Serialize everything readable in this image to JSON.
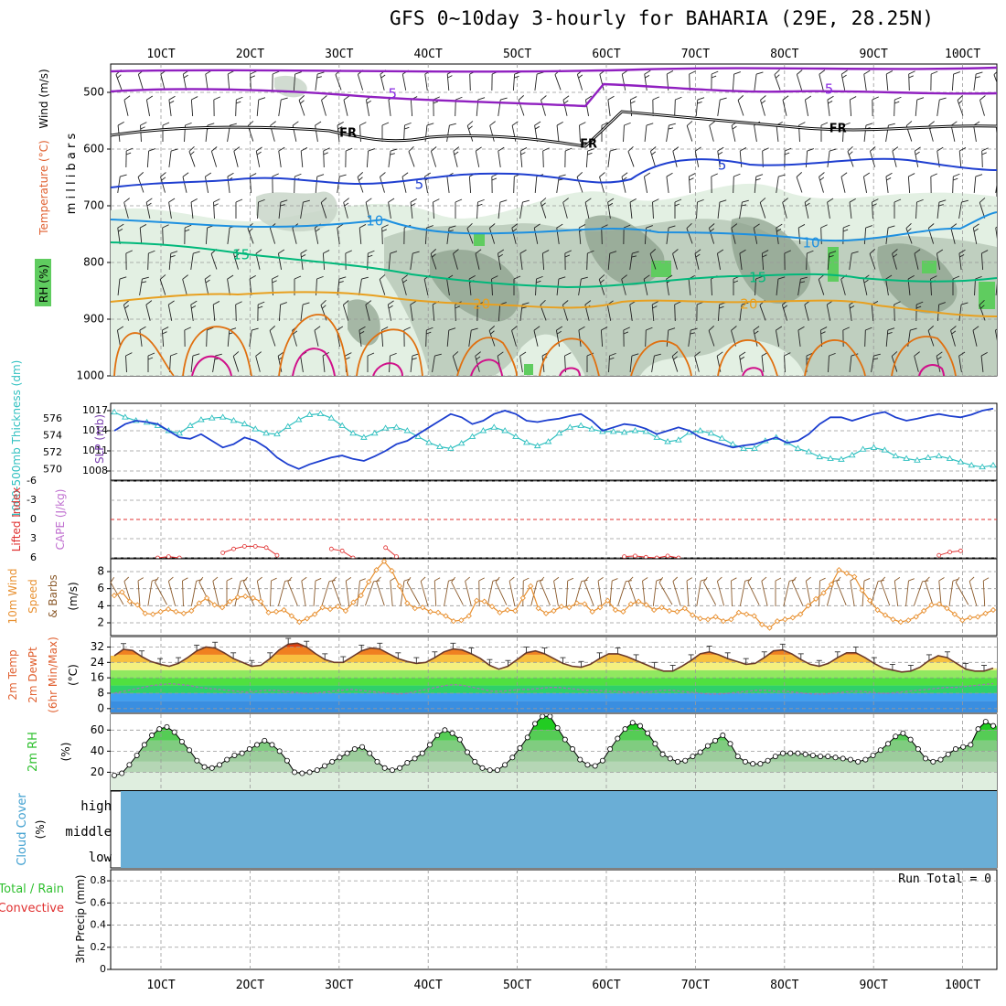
{
  "title": "GFS 0~10day 3-hourly for BAHARIA (29E, 28.25N)",
  "date_ticks": [
    "1OCT",
    "2OCT",
    "3OCT",
    "4OCT",
    "5OCT",
    "6OCT",
    "7OCT",
    "8OCT",
    "9OCT",
    "10OCT"
  ],
  "colors": {
    "rh_green": "#5fcc5f",
    "temp_500": "#8a2be2",
    "temp_fr": "#000000",
    "temp_5": "#1f3fd0",
    "temp_10": "#1e90e0",
    "temp_15": "#00b87a",
    "temp_20": "#e8a020",
    "temp_25": "#e07010",
    "temp_30": "#d0108a",
    "slp": "#1d3fcf",
    "thickness": "#30c0c0",
    "lifted_index": "#e03030",
    "wind_speed": "#e89030",
    "barbs": "#8b5a2b",
    "dewpoint": "#9b7ab0",
    "rh_line": "#000000",
    "cloud": "#6aaed6",
    "precip_total": "#30c030"
  },
  "chart_data": [
    {
      "id": "upper_air",
      "type": "contour",
      "ylabel_parts": [
        "RH (%)",
        "Temperature (°C)",
        "Wind (m/s)"
      ],
      "yunit": "m i l l i b a r s",
      "y_ticks": [
        "500",
        "600",
        "700",
        "800",
        "900",
        "1000"
      ],
      "ylim": [
        450,
        1000
      ],
      "contour_labels": [
        {
          "text": "5",
          "level": "500",
          "day": 2.6
        },
        {
          "text": "5",
          "level": "500",
          "day": 7.5
        },
        {
          "text": "FR",
          "level": "fr",
          "day": 2.1
        },
        {
          "text": "FR",
          "level": "fr",
          "day": 4.8
        },
        {
          "text": "FR",
          "level": "fr",
          "day": 7.6
        },
        {
          "text": "5",
          "level": "5",
          "day": 2.9
        },
        {
          "text": "5",
          "level": "5",
          "day": 6.3
        },
        {
          "text": "10",
          "level": "10",
          "day": 2.4
        },
        {
          "text": "10",
          "level": "10",
          "day": 7.3
        },
        {
          "text": "15",
          "level": "15",
          "day": 0.9
        },
        {
          "text": "15",
          "level": "15",
          "day": 6.7
        },
        {
          "text": "20",
          "level": "20",
          "day": 3.6
        },
        {
          "text": "20",
          "level": "20",
          "day": 6.6
        }
      ]
    },
    {
      "id": "slp_thickness",
      "type": "line",
      "ylabel_left": "1000-500mb Thickness (dm)",
      "ylabel_right": "SLP (mb)",
      "left_ticks": [
        "576",
        "574",
        "572",
        "570"
      ],
      "right_ticks": [
        "1017",
        "1014",
        "1011",
        "1008"
      ],
      "slp_range": [
        1008,
        1017
      ],
      "slp": [
        1014,
        1015,
        1015.5,
        1015.3,
        1015,
        1014,
        1013,
        1012.8,
        1013.5,
        1012.5,
        1011.5,
        1012,
        1013,
        1012.5,
        1011.5,
        1010,
        1009,
        1008.3,
        1009,
        1009.5,
        1010,
        1010.3,
        1009.8,
        1009.5,
        1010.2,
        1011,
        1012,
        1012.5,
        1013.5,
        1014.5,
        1015.5,
        1016.5,
        1016,
        1015,
        1015.5,
        1016.5,
        1017,
        1016.5,
        1015.5,
        1015.3,
        1015.6,
        1015.8,
        1016.2,
        1016.5,
        1015.5,
        1014,
        1014.5,
        1015,
        1014.8,
        1014.3,
        1013.5,
        1014,
        1014.5,
        1014,
        1013,
        1012.5,
        1012,
        1011.5,
        1011.8,
        1012,
        1012.5,
        1013,
        1012.2,
        1012.5,
        1013.5,
        1015,
        1016,
        1016,
        1015.5,
        1016,
        1016.5,
        1016.8,
        1016,
        1015.5,
        1015.8,
        1016.2,
        1016.5,
        1016.2,
        1016,
        1016.4,
        1017,
        1017.3
      ],
      "thickness": [
        576.8,
        576.2,
        575.8,
        575.6,
        575.2,
        574.6,
        574.3,
        575.2,
        575.9,
        576.1,
        576.2,
        575.8,
        575.4,
        574.8,
        574.3,
        574.2,
        575.1,
        575.9,
        576.5,
        576.6,
        576.1,
        575.2,
        574.3,
        573.8,
        574.3,
        574.9,
        575,
        574.6,
        573.9,
        573.2,
        572.7,
        572.5,
        573.1,
        573.9,
        574.6,
        575,
        574.6,
        573.9,
        573.2,
        572.8,
        573.3,
        574.3,
        575,
        575.2,
        574.8,
        574.5,
        574.5,
        574.4,
        574.6,
        574.5,
        573.8,
        573.3,
        573.5,
        574.4,
        574.6,
        574.3,
        573.7,
        573,
        572.5,
        572.5,
        573.4,
        573.8,
        573.2,
        572.5,
        572.1,
        571.5,
        571.3,
        571.2,
        571.7,
        572.4,
        572.6,
        572.3,
        571.6,
        571.3,
        571.1,
        571.4,
        571.6,
        571.3,
        570.9,
        570.5,
        570.3,
        570.5
      ]
    },
    {
      "id": "cape_li",
      "type": "line",
      "ylabel_left": "Lifted Index",
      "ylabel_right": "CAPE (J/kg)",
      "y_ticks": [
        "-6",
        "-3",
        "0",
        "3",
        "6"
      ],
      "ylim": [
        -6,
        6
      ],
      "lifted_index": [
        null,
        null,
        null,
        null,
        6,
        5.8,
        6,
        null,
        null,
        null,
        5.2,
        4.6,
        4.2,
        4.2,
        4.4,
        5.6,
        null,
        null,
        null,
        null,
        4.6,
        4.9,
        6,
        null,
        null,
        4.4,
        5.8,
        null,
        null,
        null,
        null,
        null,
        null,
        null,
        null,
        null,
        null,
        null,
        null,
        null,
        null,
        null,
        null,
        null,
        null,
        null,
        null,
        5.8,
        5.7,
        5.9,
        6,
        5.7,
        6,
        null,
        null,
        null,
        null,
        null,
        null,
        null,
        null,
        null,
        null,
        null,
        null,
        null,
        null,
        null,
        null,
        null,
        null,
        null,
        null,
        null,
        null,
        null,
        5.6,
        5.1,
        4.9,
        null,
        null,
        null
      ]
    },
    {
      "id": "wind10m",
      "type": "line",
      "ylabel_parts": [
        "10m Wind",
        "Speed",
        "& Barbs"
      ],
      "yunit": "(m/s)",
      "y_ticks": [
        "8",
        "6",
        "4",
        "2"
      ],
      "ylim": [
        0.5,
        9.5
      ],
      "speed": [
        5.2,
        5.6,
        4.5,
        4.1,
        3.1,
        3.0,
        3.3,
        3.6,
        3.3,
        3.1,
        3.4,
        4.3,
        4.9,
        4.1,
        3.8,
        4.5,
        5.0,
        5.1,
        4.9,
        4.5,
        3.2,
        3.3,
        3.5,
        2.8,
        2.1,
        2.5,
        3.0,
        3.8,
        3.6,
        3.9,
        3.4,
        4.4,
        5.2,
        6.8,
        8.2,
        9.2,
        8.1,
        6.3,
        4.3,
        3.7,
        3.8,
        3.3,
        3.2,
        2.8,
        2.2,
        2.3,
        2.8,
        4.6,
        4.5,
        3.9,
        3.2,
        3.5,
        3.4,
        4.9,
        6.3,
        3.7,
        3.1,
        3.4,
        3.9,
        3.8,
        4.3,
        4.2,
        3.3,
        3.8,
        4.6,
        3.5,
        3.3,
        4.2,
        4.5,
        4.1,
        3.5,
        3.8,
        3.4,
        3.3,
        3.7,
        2.9,
        2.5,
        2.4,
        2.7,
        2.2,
        2.4,
        3.2,
        3.0,
        2.8,
        1.8,
        1.4,
        2.2,
        2.4,
        2.6,
        3.0,
        4.0,
        4.8,
        5.5,
        6.5,
        8.2,
        7.8,
        7.4,
        5.8,
        4.6,
        3.5,
        2.9,
        2.4,
        2.1,
        2.3,
        2.7,
        3.4,
        4.1,
        4.2,
        3.7,
        3.0,
        2.3,
        2.6,
        2.7,
        3.1,
        3.5
      ]
    },
    {
      "id": "temp2m",
      "type": "area",
      "ylabel_parts": [
        "2m Temp",
        "2m DewPt",
        "(6hr Min/Max)"
      ],
      "yunit": "(°C)",
      "y_ticks": [
        "32",
        "24",
        "16",
        "8",
        "0"
      ],
      "ylim": [
        -2,
        37
      ],
      "temp": [
        27.5,
        30.8,
        30.2,
        27,
        24.5,
        23,
        22,
        23.5,
        26.5,
        30,
        32,
        31.5,
        29,
        26,
        24,
        22,
        22.5,
        26,
        30.5,
        33.5,
        34,
        32,
        28.5,
        25.5,
        24,
        24,
        27,
        30,
        31.5,
        31,
        28.5,
        26,
        24.5,
        23.5,
        24,
        26.5,
        29.5,
        31,
        30.5,
        28.5,
        26,
        22.5,
        20.5,
        22,
        25.5,
        29,
        30,
        28.5,
        26,
        23.5,
        22,
        21.5,
        23,
        26,
        28.5,
        28.5,
        27,
        25,
        23,
        21,
        19.5,
        19.5,
        22,
        25,
        28.5,
        29.5,
        28,
        26,
        24.5,
        23,
        23.5,
        26.5,
        30,
        30.5,
        28.5,
        25.5,
        23,
        22,
        23.5,
        26.5,
        29,
        29,
        26.5,
        23.5,
        21,
        20,
        19,
        19.5,
        21.5,
        25,
        27.5,
        26.5,
        23.5,
        20.5,
        19.5,
        19.5,
        21
      ],
      "dewpoint": [
        8,
        9,
        10,
        11,
        12,
        12.5,
        13,
        12.5,
        12,
        11,
        10.5,
        10,
        9.5,
        9,
        8.5,
        9,
        9.5,
        9.5,
        9,
        8.5,
        8,
        8,
        8.5,
        9,
        9.5,
        10,
        9.5,
        9,
        8.5,
        8,
        7.5,
        8,
        9,
        10,
        11,
        12,
        12.5,
        12,
        11,
        10,
        9,
        9,
        9.5,
        10,
        10,
        10.5,
        11,
        11,
        10.5,
        10,
        9.5,
        9.5,
        9,
        9,
        8.5,
        8.5,
        8.5,
        9,
        9.5,
        9.5,
        9,
        8.5,
        8,
        7.5,
        7.5,
        8,
        8.5,
        9,
        9.5,
        9.5,
        9,
        9,
        8.5,
        8,
        7.5,
        7.5,
        8,
        8.5,
        9,
        9,
        8.5,
        8,
        8,
        8.5,
        9,
        9.5,
        10,
        10.5,
        11,
        11,
        11.5,
        12,
        12.5,
        13
      ]
    },
    {
      "id": "rh2m",
      "type": "line",
      "ylabel": "2m RH",
      "yunit": "(%)",
      "y_ticks": [
        "60",
        "40",
        "20"
      ],
      "ylim": [
        3,
        75
      ],
      "rh": [
        17,
        19,
        27,
        36,
        46,
        55,
        61,
        63,
        58,
        49,
        41,
        31,
        25,
        24,
        27,
        32,
        36,
        38,
        42,
        46,
        50,
        46,
        40,
        31,
        20,
        19,
        20,
        22,
        26,
        30,
        34,
        38,
        42,
        44,
        38,
        30,
        24,
        22,
        24,
        29,
        33,
        38,
        46,
        55,
        60,
        57,
        51,
        39,
        30,
        24,
        22,
        22,
        27,
        34,
        43,
        53,
        66,
        73,
        73,
        62,
        51,
        42,
        32,
        27,
        26,
        31,
        42,
        52,
        61,
        67,
        64,
        57,
        47,
        37,
        33,
        30,
        31,
        35,
        39,
        45,
        50,
        55,
        47,
        35,
        30,
        28,
        28,
        31,
        35,
        38,
        38,
        38,
        37,
        36,
        35,
        35,
        34,
        33,
        32,
        30,
        32,
        36,
        41,
        47,
        54,
        57,
        51,
        42,
        33,
        30,
        32,
        37,
        42,
        44,
        46,
        61,
        68,
        64
      ]
    },
    {
      "id": "cloud",
      "type": "area",
      "ylabel_parts": [
        "Cloud Cover",
        "(%)"
      ],
      "levels": [
        "high",
        "middle",
        "low"
      ]
    },
    {
      "id": "precip",
      "type": "bar",
      "ylabel_parts": [
        "Total / Rain",
        "Convective"
      ],
      "yunit": "3hr Precip (mm)",
      "y_ticks": [
        "0.8",
        "0.6",
        "0.4",
        "0.2",
        "0"
      ],
      "ylim": [
        0,
        0.9
      ],
      "annotation": "Run Total = 0",
      "values": []
    }
  ]
}
